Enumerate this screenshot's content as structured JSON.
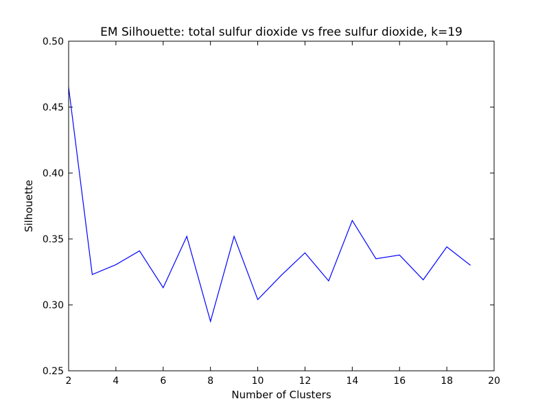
{
  "chart_data": {
    "type": "line",
    "title": "EM Silhouette: total sulfur dioxide vs free sulfur dioxide, k=19",
    "xlabel": "Number of Clusters",
    "ylabel": "Silhouette",
    "xlim": [
      2,
      20
    ],
    "ylim": [
      0.25,
      0.5
    ],
    "xticks": [
      2,
      4,
      6,
      8,
      10,
      12,
      14,
      16,
      18,
      20
    ],
    "yticks": [
      0.25,
      0.3,
      0.35,
      0.4,
      0.45,
      0.5
    ],
    "xtick_labels": [
      "2",
      "4",
      "6",
      "8",
      "10",
      "12",
      "14",
      "16",
      "18",
      "20"
    ],
    "ytick_labels": [
      "0.25",
      "0.30",
      "0.35",
      "0.40",
      "0.45",
      "0.50"
    ],
    "grid": false,
    "series": [
      {
        "color": "#0000ff",
        "x": [
          2,
          3,
          4,
          5,
          6,
          7,
          8,
          9,
          10,
          11,
          12,
          13,
          14,
          15,
          16,
          17,
          18,
          19
        ],
        "values": [
          0.465,
          0.323,
          0.3305,
          0.341,
          0.313,
          0.352,
          0.2875,
          0.352,
          0.304,
          0.3225,
          0.3395,
          0.3182,
          0.364,
          0.335,
          0.3378,
          0.319,
          0.344,
          0.33
        ]
      }
    ]
  }
}
